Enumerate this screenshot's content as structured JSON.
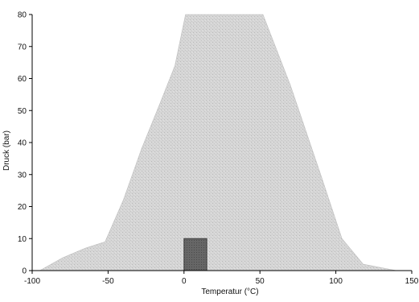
{
  "chart_data": {
    "type": "area",
    "title": "",
    "xlabel": "Temperatur (°C)",
    "ylabel": "Druck (bar)",
    "xlim": [
      -100,
      150
    ],
    "ylim": [
      0,
      80
    ],
    "x_ticks": [
      -100,
      -50,
      0,
      50,
      100,
      150
    ],
    "y_ticks": [
      0,
      10,
      20,
      30,
      40,
      50,
      60,
      70,
      80
    ],
    "x_tick_labels": [
      "-100",
      "-50",
      "0",
      "50",
      "100",
      "150"
    ],
    "y_tick_labels": [
      "0",
      "10",
      "20",
      "30",
      "40",
      "50",
      "60",
      "70",
      "80"
    ],
    "grid": false,
    "legend": "none",
    "series": [
      {
        "points": [
          [
            -95,
            0
          ],
          [
            -80,
            4
          ],
          [
            -65,
            7
          ],
          [
            -52,
            9
          ],
          [
            -40,
            22
          ],
          [
            -28,
            38
          ],
          [
            -16,
            52
          ],
          [
            -6,
            64
          ],
          [
            1,
            80
          ],
          [
            52,
            80
          ],
          [
            70,
            58
          ],
          [
            90,
            30
          ],
          [
            104,
            10
          ],
          [
            118,
            2
          ],
          [
            140,
            0
          ]
        ],
        "color": "#d0d0d0"
      },
      {
        "points": [
          [
            0,
            0
          ],
          [
            0,
            10
          ],
          [
            15,
            10
          ],
          [
            15,
            0
          ]
        ],
        "color": "#6a6a6a"
      }
    ]
  }
}
